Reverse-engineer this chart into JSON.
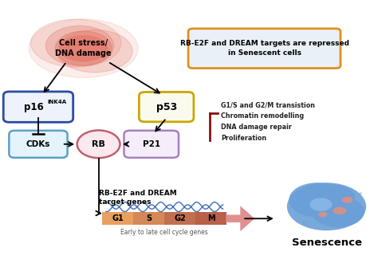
{
  "fig_width": 4.74,
  "fig_height": 3.35,
  "dpi": 100,
  "bg_color": "#ffffff",
  "cell_stress_text": "Cell stress/\nDNA damage",
  "cell_stress_color": "#e07060",
  "p16_color": "#2b4da0",
  "p16_bg": "#eef2fa",
  "p53_color": "#c8a800",
  "p53_bg": "#fafaee",
  "cdks_color": "#5aA0c8",
  "cdks_bg": "#e5f3fa",
  "rb_color": "#c06070",
  "rb_bg": "#fce8ef",
  "p21_color": "#a880c0",
  "p21_bg": "#f5eefa",
  "box_text": "RB-E2F and DREAM targets are repressed\nin Senescent cells",
  "box_color": "#e09020",
  "box_bg": "#eaf0f8",
  "repressed_text": "G1/S and G2/M transistion\nChromatin remodelling\nDNA damage repair\nProliferation",
  "dream_label": "RB-E2F and DREAM\ntarget genes",
  "cycle_label": "Early to late cell cycle genes",
  "senescence_text": "Senescence",
  "bar_colors": [
    "#e8a060",
    "#d48858",
    "#c07050",
    "#b86048"
  ],
  "bar_labels": [
    "G1",
    "S",
    "G2",
    "M"
  ],
  "cell_blue": "#6a9fd8",
  "nucleus_blue": "#8ab8e8",
  "vacuole_pink": "#e09080"
}
